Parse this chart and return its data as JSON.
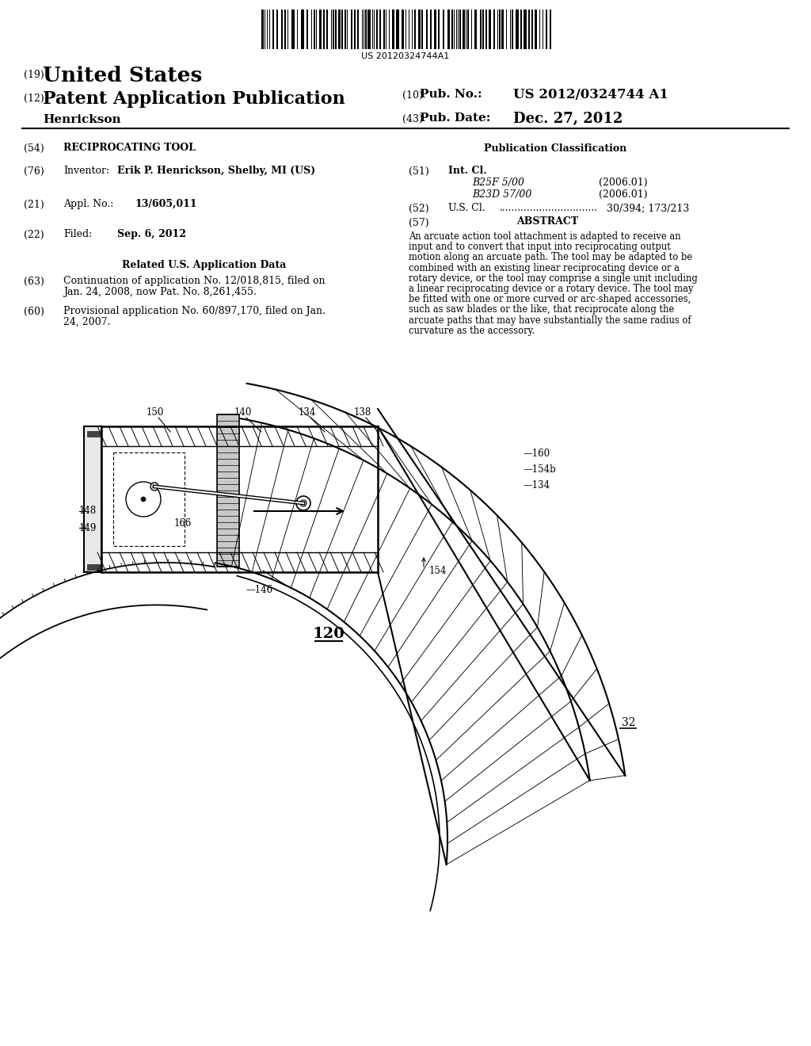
{
  "barcode_text": "US 20120324744A1",
  "country": "United States",
  "doc_type_19": "(19)",
  "doc_type_12": "(12)",
  "doc_type": "Patent Application Publication",
  "pub_no_num": "(10)",
  "pub_no_label": "Pub. No.:",
  "pub_no": "US 2012/0324744 A1",
  "pub_date_num": "(43)",
  "pub_date_label": "Pub. Date:",
  "pub_date": "Dec. 27, 2012",
  "inventor_name": "Henrickson",
  "title_no": "(54)",
  "title_label": "RECIPROCATING TOOL",
  "inv_no": "(76)",
  "inv_label": "Inventor:",
  "inventor_full": "Erik P. Henrickson, Shelby, MI (US)",
  "appl_no": "(21)",
  "appl_label": "Appl. No.:",
  "appl_val": "13/605,011",
  "filed_no": "(22)",
  "filed_label": "Filed:",
  "filed_val": "Sep. 6, 2012",
  "related_header": "Related U.S. Application Data",
  "cont_no": "(63)",
  "cont_text1": "Continuation of application No. 12/018,815, filed on",
  "cont_text2": "Jan. 24, 2008, now Pat. No. 8,261,455.",
  "prov_no": "(60)",
  "prov_text1": "Provisional application No. 60/897,170, filed on Jan.",
  "prov_text2": "24, 2007.",
  "pub_class_header": "Publication Classification",
  "intcl_no": "(51)",
  "intcl_label": "Int. Cl.",
  "intcl_b25f": "B25F 5/00",
  "intcl_b25f_year": "(2006.01)",
  "intcl_b23d": "B23D 57/00",
  "intcl_b23d_year": "(2006.01)",
  "uscl_no": "(52)",
  "uscl_label": "U.S. Cl.",
  "uscl_dots": "................................",
  "uscl_val": "30/394; 173/213",
  "abstract_no": "(57)",
  "abstract_header": "ABSTRACT",
  "abstract_lines": [
    "An arcuate action tool attachment is adapted to receive an",
    "input and to convert that input into reciprocating output",
    "motion along an arcuate path. The tool may be adapted to be",
    "combined with an existing linear reciprocating device or a",
    "rotary device, or the tool may comprise a single unit including",
    "a linear reciprocating device or a rotary device. The tool may",
    "be fitted with one or more curved or arc-shaped accessories,",
    "such as saw blades or the like, that reciprocate along the",
    "arcuate paths that may have substantially the same radius of",
    "curvature as the accessory."
  ],
  "fig_label": "120",
  "blade_label": "32"
}
